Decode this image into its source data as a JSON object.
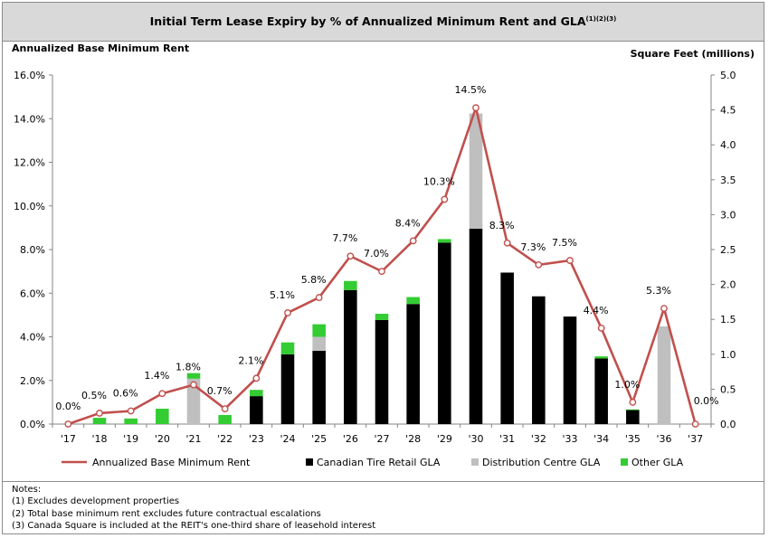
{
  "title": {
    "main": "Initial Term Lease Expiry by % of Annualized Minimum Rent and GLA",
    "superscript": "(1)(2)(3)"
  },
  "axis_labels": {
    "left": "Annualized Base Minimum Rent",
    "right": "Square Feet (millions)"
  },
  "chart_data": {
    "type": "bar",
    "title": "Initial Term Lease Expiry by % of Annualized Minimum Rent and GLA(1)(2)(3)",
    "categories": [
      "'17",
      "'18",
      "'19",
      "'20",
      "'21",
      "'22",
      "'23",
      "'24",
      "'25",
      "'26",
      "'27",
      "'28",
      "'29",
      "'30",
      "'31",
      "'32",
      "'33",
      "'34",
      "'35",
      "'36",
      "'37"
    ],
    "y_left": {
      "label": "Annualized Base Minimum Rent",
      "ylim": [
        0,
        16
      ],
      "ticks": [
        "0.0%",
        "2.0%",
        "4.0%",
        "6.0%",
        "8.0%",
        "10.0%",
        "12.0%",
        "14.0%",
        "16.0%"
      ]
    },
    "y_right": {
      "label": "Square Feet (millions)",
      "ylim": [
        0,
        5
      ],
      "ticks": [
        "0.0",
        "0.5",
        "1.0",
        "1.5",
        "2.0",
        "2.5",
        "3.0",
        "3.5",
        "4.0",
        "4.5",
        "5.0"
      ]
    },
    "stacked_series": [
      {
        "name": "Canadian Tire Retail GLA",
        "color": "#000000",
        "values": [
          0,
          0,
          0,
          0,
          0,
          0,
          0.4,
          1.0,
          1.05,
          1.92,
          1.49,
          1.72,
          2.6,
          2.8,
          2.17,
          1.83,
          1.54,
          0.94,
          0.2,
          0,
          0
        ]
      },
      {
        "name": "Distribution Centre GLA",
        "color": "#bfbfbf",
        "values": [
          0,
          0,
          0,
          0,
          0.65,
          0,
          0,
          0,
          0.2,
          0,
          0,
          0,
          0,
          1.65,
          0,
          0,
          0,
          0,
          0,
          1.4,
          0
        ]
      },
      {
        "name": "Other GLA",
        "color": "#33cc33",
        "values": [
          0,
          0.09,
          0.08,
          0.22,
          0.08,
          0.13,
          0.09,
          0.17,
          0.18,
          0.13,
          0.09,
          0.1,
          0.05,
          0,
          0,
          0,
          0,
          0.03,
          0.01,
          0,
          0
        ]
      }
    ],
    "line_series": {
      "name": "Annualized Base Minimum Rent",
      "color": "#c0504d",
      "values": [
        0.0,
        0.5,
        0.6,
        1.4,
        1.8,
        0.7,
        2.1,
        5.1,
        5.8,
        7.7,
        7.0,
        8.4,
        10.3,
        14.5,
        8.3,
        7.3,
        7.5,
        4.4,
        1.0,
        5.3,
        0.0
      ],
      "labels": [
        "0.0%",
        "0.5%",
        "0.6%",
        "1.4%",
        "1.8%",
        "0.7%",
        "2.1%",
        "5.1%",
        "5.8%",
        "7.7%",
        "7.0%",
        "8.4%",
        "10.3%",
        "14.5%",
        "8.3%",
        "7.3%",
        "7.5%",
        "4.4%",
        "1.0%",
        "5.3%",
        "0.0%"
      ]
    },
    "legend": {
      "placement": "bottom",
      "items": [
        "Annualized Base Minimum Rent",
        "Canadian Tire Retail GLA",
        "Distribution Centre GLA",
        "Other GLA"
      ]
    },
    "grid": false
  },
  "notes": {
    "heading": "Notes:",
    "items": [
      "(1) Excludes development properties",
      "(2) Total base minimum rent excludes future contractual escalations",
      "(3) Canada Square is included at the REIT's one-third share of leasehold interest"
    ]
  }
}
